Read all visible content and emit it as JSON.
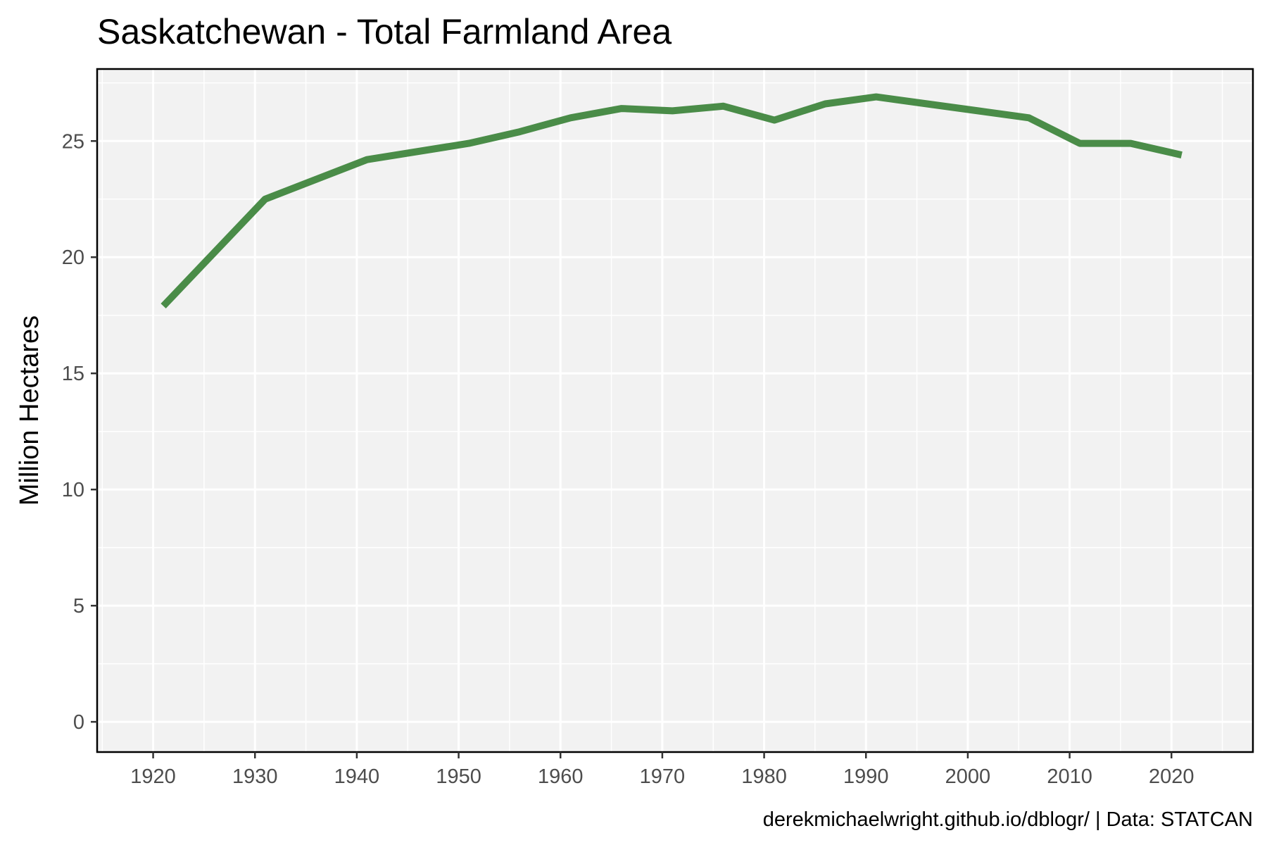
{
  "chart_data": {
    "type": "line",
    "title": "Saskatchewan - Total Farmland Area",
    "xlabel": "",
    "ylabel": "Million Hectares",
    "caption": "derekmichaelwright.github.io/dblogr/ | Data: STATCAN",
    "xlim": [
      1914.5,
      2028
    ],
    "ylim": [
      -1.3,
      28.1
    ],
    "x_ticks": [
      1920,
      1930,
      1940,
      1950,
      1960,
      1970,
      1980,
      1990,
      2000,
      2010,
      2020
    ],
    "y_ticks": [
      0,
      5,
      10,
      15,
      20,
      25
    ],
    "grid": true,
    "legend": "none",
    "line_color": "#4a8c48",
    "panel_background": "#f2f2f2",
    "series": [
      {
        "x": [
          1921,
          1931,
          1941,
          1951,
          1956,
          1961,
          1966,
          1971,
          1976,
          1981,
          1986,
          1991,
          1996,
          2001,
          2006,
          2011,
          2016,
          2021
        ],
        "values": [
          17.9,
          22.5,
          24.2,
          24.9,
          25.4,
          26.0,
          26.4,
          26.3,
          26.5,
          25.9,
          26.6,
          26.9,
          26.6,
          26.3,
          26.0,
          24.9,
          24.9,
          24.4
        ]
      }
    ]
  }
}
